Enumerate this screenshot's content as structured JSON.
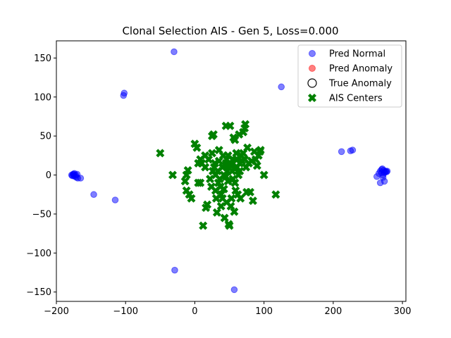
{
  "chart_data": {
    "type": "scatter",
    "title": "Clonal Selection AIS - Gen 5, Loss=0.000",
    "xlabel": "",
    "ylabel": "",
    "xlim": [
      -200,
      305
    ],
    "ylim": [
      -162,
      172
    ],
    "xticks": [
      -200,
      -100,
      0,
      100,
      200,
      300
    ],
    "yticks": [
      -150,
      -100,
      -50,
      0,
      50,
      100,
      150
    ],
    "xtick_labels": [
      "−200",
      "−100",
      "0",
      "100",
      "200",
      "300"
    ],
    "ytick_labels": [
      "−150",
      "−100",
      "−50",
      "0",
      "50",
      "100",
      "150"
    ],
    "grid": false,
    "legend_position": "top-right",
    "colors": {
      "pred_normal": "#0000ff",
      "pred_anomaly": "#ff0000",
      "ais_centers": "#008000",
      "true_anomaly_edge": "#000000"
    },
    "series": [
      {
        "name": "Pred Normal",
        "marker": "circle",
        "points": [
          [
            -30,
            158
          ],
          [
            125,
            113
          ],
          [
            -103,
            102
          ],
          [
            -102,
            105
          ],
          [
            212,
            30
          ],
          [
            225,
            31
          ],
          [
            228,
            32
          ],
          [
            -178,
            0
          ],
          [
            -176,
            1
          ],
          [
            -175,
            -1
          ],
          [
            -174,
            2
          ],
          [
            -173,
            -2
          ],
          [
            -172,
            0
          ],
          [
            -171,
            -3
          ],
          [
            -170,
            1
          ],
          [
            -169,
            -4
          ],
          [
            -165,
            -4
          ],
          [
            -177,
            -1
          ],
          [
            -175,
            1
          ],
          [
            -146,
            -25
          ],
          [
            -115,
            -32
          ],
          [
            263,
            -2
          ],
          [
            266,
            2
          ],
          [
            268,
            5
          ],
          [
            270,
            3
          ],
          [
            271,
            8
          ],
          [
            272,
            0
          ],
          [
            273,
            6
          ],
          [
            274,
            3
          ],
          [
            275,
            4
          ],
          [
            276,
            5
          ],
          [
            277,
            4
          ],
          [
            278,
            5
          ],
          [
            272,
            -3
          ],
          [
            268,
            -10
          ],
          [
            274,
            -8
          ],
          [
            270,
            7
          ],
          [
            -29,
            -122
          ],
          [
            57,
            -147
          ]
        ]
      },
      {
        "name": "Pred Anomaly",
        "marker": "circle",
        "points": []
      },
      {
        "name": "True Anomaly",
        "marker": "open-circle",
        "points": []
      },
      {
        "name": "AIS Centers",
        "marker": "x",
        "points": [
          [
            -50,
            28
          ],
          [
            -32,
            0
          ],
          [
            -12,
            0
          ],
          [
            -10,
            6
          ],
          [
            -14,
            -8
          ],
          [
            -12,
            -20
          ],
          [
            -8,
            -25
          ],
          [
            -5,
            -30
          ],
          [
            0,
            40
          ],
          [
            3,
            35
          ],
          [
            5,
            -10
          ],
          [
            8,
            -10
          ],
          [
            10,
            15
          ],
          [
            12,
            -65
          ],
          [
            15,
            25
          ],
          [
            16,
            -42
          ],
          [
            18,
            -38
          ],
          [
            25,
            50
          ],
          [
            25,
            28
          ],
          [
            27,
            52
          ],
          [
            28,
            10
          ],
          [
            30,
            0
          ],
          [
            30,
            -20
          ],
          [
            31,
            -30
          ],
          [
            32,
            -48
          ],
          [
            33,
            5
          ],
          [
            34,
            -10
          ],
          [
            35,
            18
          ],
          [
            35,
            32
          ],
          [
            36,
            -5
          ],
          [
            37,
            -15
          ],
          [
            38,
            -25
          ],
          [
            38,
            -40
          ],
          [
            40,
            10
          ],
          [
            40,
            -30
          ],
          [
            41,
            25
          ],
          [
            42,
            -18
          ],
          [
            42,
            0
          ],
          [
            43,
            -55
          ],
          [
            44,
            12
          ],
          [
            45,
            63
          ],
          [
            45,
            -2
          ],
          [
            46,
            20
          ],
          [
            46,
            -35
          ],
          [
            47,
            5
          ],
          [
            48,
            -8
          ],
          [
            49,
            -63
          ],
          [
            50,
            -65
          ],
          [
            50,
            15
          ],
          [
            51,
            63
          ],
          [
            52,
            -40
          ],
          [
            53,
            -30
          ],
          [
            54,
            5
          ],
          [
            55,
            20
          ],
          [
            56,
            48
          ],
          [
            57,
            -47
          ],
          [
            58,
            45
          ],
          [
            58,
            8
          ],
          [
            59,
            -20
          ],
          [
            60,
            28
          ],
          [
            61,
            10
          ],
          [
            62,
            -25
          ],
          [
            63,
            0
          ],
          [
            64,
            52
          ],
          [
            65,
            15
          ],
          [
            66,
            -30
          ],
          [
            67,
            25
          ],
          [
            70,
            55
          ],
          [
            72,
            60
          ],
          [
            72,
            20
          ],
          [
            73,
            65
          ],
          [
            74,
            10
          ],
          [
            75,
            -22
          ],
          [
            76,
            35
          ],
          [
            78,
            15
          ],
          [
            80,
            -22
          ],
          [
            82,
            18
          ],
          [
            84,
            -33
          ],
          [
            86,
            30
          ],
          [
            88,
            20
          ],
          [
            90,
            12
          ],
          [
            92,
            25
          ],
          [
            94,
            30
          ],
          [
            95,
            32
          ],
          [
            100,
            0
          ],
          [
            117,
            -25
          ],
          [
            20,
            20
          ],
          [
            22,
            -5
          ],
          [
            24,
            -15
          ],
          [
            26,
            5
          ],
          [
            29,
            15
          ],
          [
            15,
            10
          ],
          [
            8,
            20
          ],
          [
            5,
            15
          ],
          [
            45,
            15
          ],
          [
            48,
            25
          ],
          [
            52,
            12
          ],
          [
            55,
            -5
          ],
          [
            58,
            -10
          ],
          [
            60,
            20
          ],
          [
            65,
            5
          ],
          [
            68,
            18
          ],
          [
            70,
            28
          ]
        ]
      }
    ]
  }
}
